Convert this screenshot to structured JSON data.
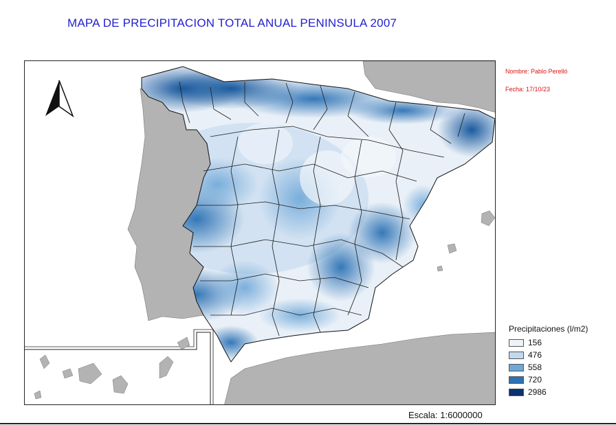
{
  "title": "MAPA DE PRECIPITACION TOTAL ANUAL PENINSULA 2007",
  "meta": {
    "author": "Nombre: Pablo Perelló",
    "date": "Fecha: 17/10/23"
  },
  "legend": {
    "title": "Precipitaciones (l/m2)",
    "items": [
      {
        "label": "156",
        "color": "#eef3fa"
      },
      {
        "label": "476",
        "color": "#c3d8ee"
      },
      {
        "label": "558",
        "color": "#6fa8d8"
      },
      {
        "label": "720",
        "color": "#2c72b4"
      },
      {
        "label": "2986",
        "color": "#0a3370"
      }
    ]
  },
  "scale": "Escala: 1:6000000",
  "colors": {
    "title": "#1f1fd0",
    "meta": "#e01010",
    "land_other": "#b3b3b3",
    "sea": "#ffffff"
  },
  "icons": [
    "north-arrow-icon"
  ]
}
